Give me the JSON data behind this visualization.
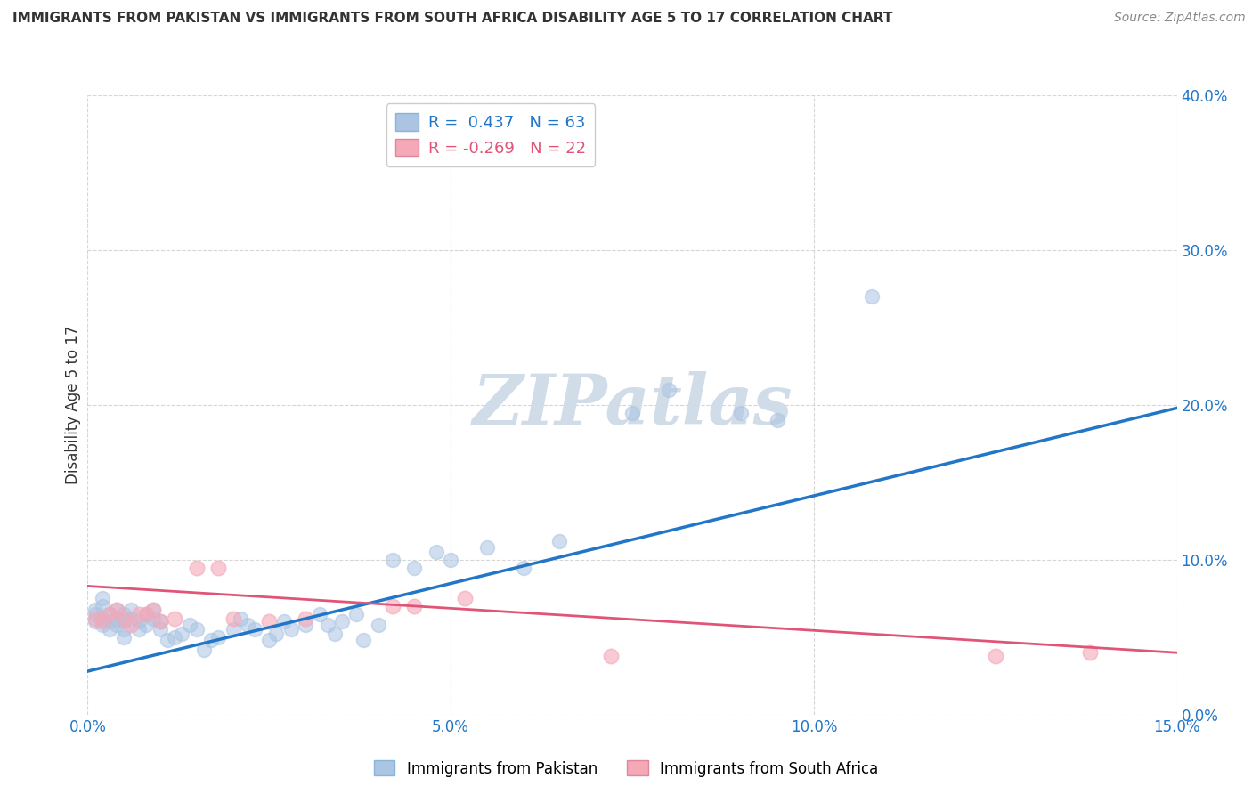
{
  "title": "IMMIGRANTS FROM PAKISTAN VS IMMIGRANTS FROM SOUTH AFRICA DISABILITY AGE 5 TO 17 CORRELATION CHART",
  "source": "Source: ZipAtlas.com",
  "ylabel": "Disability Age 5 to 17",
  "xlabel_ticks": [
    "0.0%",
    "5.0%",
    "10.0%",
    "15.0%"
  ],
  "xlabel_vals": [
    0.0,
    0.05,
    0.1,
    0.15
  ],
  "ylabel_ticks": [
    "0.0%",
    "10.0%",
    "20.0%",
    "30.0%",
    "40.0%"
  ],
  "ylabel_vals": [
    0.0,
    0.1,
    0.2,
    0.3,
    0.4
  ],
  "xlim": [
    0.0,
    0.15
  ],
  "ylim": [
    0.0,
    0.4
  ],
  "r_pakistan": 0.437,
  "n_pakistan": 63,
  "r_south_africa": -0.269,
  "n_south_africa": 22,
  "pakistan_color": "#aac4e2",
  "south_africa_color": "#f4a8b8",
  "pakistan_line_color": "#2176c7",
  "south_africa_line_color": "#e05577",
  "pakistan_x": [
    0.001,
    0.001,
    0.001,
    0.002,
    0.002,
    0.002,
    0.002,
    0.003,
    0.003,
    0.003,
    0.004,
    0.004,
    0.004,
    0.005,
    0.005,
    0.005,
    0.005,
    0.006,
    0.006,
    0.007,
    0.007,
    0.008,
    0.008,
    0.009,
    0.009,
    0.01,
    0.01,
    0.011,
    0.012,
    0.013,
    0.014,
    0.015,
    0.016,
    0.017,
    0.018,
    0.02,
    0.021,
    0.022,
    0.023,
    0.025,
    0.026,
    0.027,
    0.028,
    0.03,
    0.032,
    0.033,
    0.034,
    0.035,
    0.037,
    0.038,
    0.04,
    0.042,
    0.045,
    0.048,
    0.05,
    0.055,
    0.06,
    0.065,
    0.075,
    0.08,
    0.09,
    0.095,
    0.108
  ],
  "pakistan_y": [
    0.06,
    0.065,
    0.068,
    0.058,
    0.062,
    0.07,
    0.075,
    0.06,
    0.065,
    0.055,
    0.062,
    0.068,
    0.058,
    0.055,
    0.06,
    0.065,
    0.05,
    0.062,
    0.068,
    0.055,
    0.06,
    0.058,
    0.065,
    0.062,
    0.068,
    0.06,
    0.055,
    0.048,
    0.05,
    0.052,
    0.058,
    0.055,
    0.042,
    0.048,
    0.05,
    0.055,
    0.062,
    0.058,
    0.055,
    0.048,
    0.052,
    0.06,
    0.055,
    0.058,
    0.065,
    0.058,
    0.052,
    0.06,
    0.065,
    0.048,
    0.058,
    0.1,
    0.095,
    0.105,
    0.1,
    0.108,
    0.095,
    0.112,
    0.195,
    0.21,
    0.195,
    0.19,
    0.27
  ],
  "south_africa_x": [
    0.001,
    0.002,
    0.003,
    0.004,
    0.005,
    0.006,
    0.007,
    0.008,
    0.009,
    0.01,
    0.012,
    0.015,
    0.018,
    0.02,
    0.025,
    0.03,
    0.042,
    0.045,
    0.052,
    0.072,
    0.125,
    0.138
  ],
  "south_africa_y": [
    0.062,
    0.06,
    0.065,
    0.068,
    0.062,
    0.058,
    0.065,
    0.065,
    0.068,
    0.06,
    0.062,
    0.095,
    0.095,
    0.062,
    0.06,
    0.062,
    0.07,
    0.07,
    0.075,
    0.038,
    0.038,
    0.04
  ],
  "pk_line_x0": 0.0,
  "pk_line_y0": 0.028,
  "pk_line_x1": 0.15,
  "pk_line_y1": 0.198,
  "sa_line_x0": 0.0,
  "sa_line_y0": 0.083,
  "sa_line_x1": 0.15,
  "sa_line_y1": 0.04,
  "background_color": "#ffffff",
  "grid_color": "#cccccc",
  "title_color": "#333333",
  "axis_label_color": "#2176c7",
  "watermark_color": "#d0dce8"
}
